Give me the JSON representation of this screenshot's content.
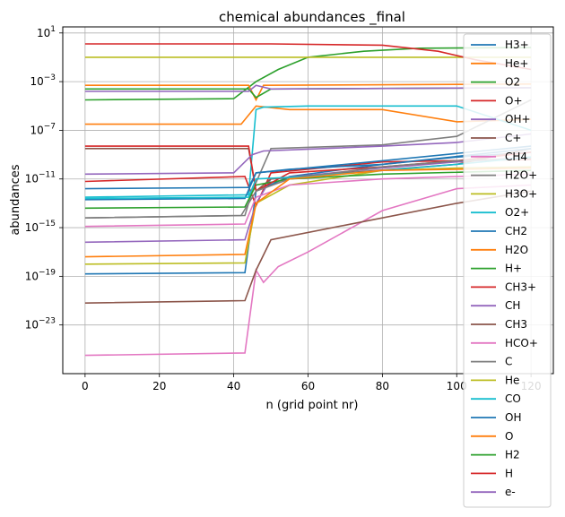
{
  "chart_data": {
    "type": "line",
    "title": "chemical abundances _final",
    "xlabel": "n (grid point nr)",
    "ylabel": "abundances",
    "xlim": [
      -6,
      126
    ],
    "ylim_log10": [
      -27,
      1.5
    ],
    "yscale": "log",
    "grid": true,
    "legend": "right",
    "x_ticks": [
      {
        "value": 0,
        "label": "0"
      },
      {
        "value": 20,
        "label": "20"
      },
      {
        "value": 40,
        "label": "40"
      },
      {
        "value": 60,
        "label": "60"
      },
      {
        "value": 80,
        "label": "80"
      },
      {
        "value": 100,
        "label": "100"
      },
      {
        "value": 120,
        "label": "120"
      }
    ],
    "y_ticks": [
      {
        "exp": 1,
        "label": "10",
        "sup": "1"
      },
      {
        "exp": -3,
        "label": "10",
        "sup": "−3"
      },
      {
        "exp": -7,
        "label": "10",
        "sup": "−7"
      },
      {
        "exp": -11,
        "label": "10",
        "sup": "−11"
      },
      {
        "exp": -15,
        "label": "10",
        "sup": "−15"
      },
      {
        "exp": -19,
        "label": "10",
        "sup": "−19"
      },
      {
        "exp": -23,
        "label": "10",
        "sup": "−23"
      }
    ],
    "series": [
      {
        "name": "H3+",
        "color": "#1f77b4",
        "pts": [
          [
            0,
            -18.8
          ],
          [
            43,
            -18.7
          ],
          [
            46,
            -12
          ],
          [
            55,
            -10.8
          ],
          [
            80,
            -9.8
          ],
          [
            100,
            -9.2
          ],
          [
            120,
            -8.8
          ]
        ]
      },
      {
        "name": "He+",
        "color": "#ff7f0e",
        "pts": [
          [
            0,
            -6.5
          ],
          [
            42,
            -6.5
          ],
          [
            46,
            -5
          ],
          [
            55,
            -5.3
          ],
          [
            80,
            -5.3
          ],
          [
            100,
            -6.3
          ],
          [
            120,
            -6.1
          ]
        ]
      },
      {
        "name": "O2",
        "color": "#2ca02c",
        "pts": [
          [
            0,
            -4.5
          ],
          [
            40,
            -4.4
          ],
          [
            46,
            -3
          ],
          [
            52,
            -2
          ],
          [
            60,
            -1
          ],
          [
            75,
            -0.5
          ],
          [
            90,
            -0.25
          ],
          [
            120,
            -0.2
          ]
        ]
      },
      {
        "name": "O+",
        "color": "#d62728",
        "pts": [
          [
            0,
            -11.2
          ],
          [
            43,
            -10.8
          ],
          [
            46,
            -13.2
          ],
          [
            50,
            -10.5
          ],
          [
            80,
            -9.6
          ],
          [
            120,
            -9.4
          ]
        ]
      },
      {
        "name": "OH+",
        "color": "#9467bd",
        "pts": [
          [
            0,
            -16.2
          ],
          [
            43,
            -16
          ],
          [
            46,
            -13
          ],
          [
            50,
            -11
          ],
          [
            80,
            -10.1
          ],
          [
            100,
            -9.6
          ],
          [
            120,
            -9.2
          ]
        ]
      },
      {
        "name": "C+",
        "color": "#8c564b",
        "pts": [
          [
            0,
            -8.5
          ],
          [
            44,
            -8.5
          ],
          [
            46,
            -12
          ],
          [
            50,
            -11
          ],
          [
            70,
            -10.5
          ],
          [
            100,
            -9.8
          ],
          [
            120,
            -8.5
          ]
        ]
      },
      {
        "name": "CH4",
        "color": "#e377c2",
        "pts": [
          [
            0,
            -25.5
          ],
          [
            43,
            -25.3
          ],
          [
            46,
            -18.5
          ],
          [
            48,
            -19.5
          ],
          [
            52,
            -18.2
          ],
          [
            60,
            -17
          ],
          [
            80,
            -13.6
          ],
          [
            100,
            -11.8
          ],
          [
            120,
            -11.5
          ]
        ]
      },
      {
        "name": "H2O+",
        "color": "#7f7f7f",
        "pts": [
          [
            0,
            -14.2
          ],
          [
            43,
            -14
          ],
          [
            45,
            -12
          ],
          [
            50,
            -8.5
          ],
          [
            80,
            -8.2
          ],
          [
            100,
            -7.5
          ],
          [
            120,
            -4.5
          ]
        ]
      },
      {
        "name": "H3O+",
        "color": "#bcbd22",
        "pts": [
          [
            0,
            -18
          ],
          [
            43,
            -17.9
          ],
          [
            46,
            -13
          ],
          [
            55,
            -11.5
          ],
          [
            80,
            -10.3
          ],
          [
            100,
            -10.1
          ],
          [
            120,
            -10
          ]
        ]
      },
      {
        "name": "O2+",
        "color": "#17becf",
        "pts": [
          [
            0,
            -12.5
          ],
          [
            44,
            -12.3
          ],
          [
            46,
            -5.3
          ],
          [
            48,
            -5.1
          ],
          [
            60,
            -5
          ],
          [
            100,
            -5
          ],
          [
            120,
            -7
          ]
        ]
      },
      {
        "name": "CH2",
        "color": "#1f77b4",
        "pts": [
          [
            0,
            -12.7
          ],
          [
            43,
            -12.6
          ],
          [
            46,
            -10.5
          ],
          [
            55,
            -10.2
          ],
          [
            80,
            -9.8
          ],
          [
            120,
            -8.5
          ]
        ]
      },
      {
        "name": "H2O",
        "color": "#ff7f0e",
        "pts": [
          [
            0,
            -3.3
          ],
          [
            44,
            -3.3
          ],
          [
            46,
            -4.5
          ],
          [
            48,
            -3.3
          ],
          [
            120,
            -3.2
          ]
        ]
      },
      {
        "name": "H+",
        "color": "#2ca02c",
        "pts": [
          [
            0,
            -13.4
          ],
          [
            43,
            -13.3
          ],
          [
            46,
            -11.5
          ],
          [
            55,
            -11
          ],
          [
            80,
            -10.6
          ],
          [
            120,
            -10.3
          ]
        ]
      },
      {
        "name": "CH3+",
        "color": "#d62728",
        "pts": [
          [
            0,
            -8.3
          ],
          [
            44,
            -8.3
          ],
          [
            46,
            -12
          ],
          [
            55,
            -10.5
          ],
          [
            80,
            -10
          ],
          [
            100,
            -9.5
          ],
          [
            120,
            -8.8
          ]
        ]
      },
      {
        "name": "CH",
        "color": "#9467bd",
        "pts": [
          [
            0,
            -10.6
          ],
          [
            40,
            -10.5
          ],
          [
            45,
            -9
          ],
          [
            48,
            -8.7
          ],
          [
            80,
            -8.3
          ],
          [
            100,
            -8
          ],
          [
            120,
            -7.3
          ]
        ]
      },
      {
        "name": "CH3",
        "color": "#8c564b",
        "pts": [
          [
            0,
            -21.2
          ],
          [
            43,
            -21
          ],
          [
            46,
            -18.5
          ],
          [
            50,
            -16
          ],
          [
            70,
            -14.8
          ],
          [
            100,
            -13
          ],
          [
            120,
            -12
          ]
        ]
      },
      {
        "name": "HCO+",
        "color": "#e377c2",
        "pts": [
          [
            0,
            -14.9
          ],
          [
            43,
            -14.7
          ],
          [
            46,
            -12.5
          ],
          [
            55,
            -11.5
          ],
          [
            80,
            -11
          ],
          [
            100,
            -10.8
          ],
          [
            120,
            -10.6
          ]
        ]
      },
      {
        "name": "C",
        "color": "#7f7f7f",
        "pts": [
          [
            0,
            -14.2
          ],
          [
            42,
            -14
          ],
          [
            46,
            -12
          ],
          [
            55,
            -11
          ],
          [
            80,
            -10
          ],
          [
            100,
            -9.5
          ],
          [
            120,
            -9.3
          ]
        ]
      },
      {
        "name": "He",
        "color": "#bcbd22",
        "pts": [
          [
            0,
            -1
          ],
          [
            120,
            -1
          ]
        ]
      },
      {
        "name": "CO",
        "color": "#17becf",
        "pts": [
          [
            0,
            -12.6
          ],
          [
            44,
            -12.5
          ],
          [
            46,
            -11
          ],
          [
            60,
            -10.8
          ],
          [
            100,
            -9.8
          ],
          [
            120,
            -9.2
          ]
        ]
      },
      {
        "name": "OH",
        "color": "#1f77b4",
        "pts": [
          [
            0,
            -11.8
          ],
          [
            44,
            -11.7
          ],
          [
            46,
            -10.5
          ],
          [
            80,
            -9.5
          ],
          [
            120,
            -8.3
          ]
        ]
      },
      {
        "name": "O",
        "color": "#ff7f0e",
        "pts": [
          [
            0,
            -17.4
          ],
          [
            43,
            -17.2
          ],
          [
            46,
            -13
          ],
          [
            55,
            -11
          ],
          [
            80,
            -10.3
          ],
          [
            100,
            -10.2
          ],
          [
            120,
            -10.1
          ]
        ]
      },
      {
        "name": "H2",
        "color": "#2ca02c",
        "pts": [
          [
            0,
            -3.6
          ],
          [
            44,
            -3.6
          ],
          [
            46,
            -4.3
          ],
          [
            50,
            -3.6
          ],
          [
            120,
            -3.5
          ]
        ]
      },
      {
        "name": "H",
        "color": "#d62728",
        "pts": [
          [
            0,
            0.1
          ],
          [
            50,
            0.1
          ],
          [
            80,
            0
          ],
          [
            95,
            -0.5
          ],
          [
            105,
            -1.2
          ],
          [
            120,
            -2
          ]
        ]
      },
      {
        "name": "e-",
        "color": "#9467bd",
        "pts": [
          [
            0,
            -3.8
          ],
          [
            44,
            -3.8
          ],
          [
            46,
            -3.3
          ],
          [
            50,
            -3.6
          ],
          [
            120,
            -3.5
          ]
        ]
      }
    ]
  }
}
